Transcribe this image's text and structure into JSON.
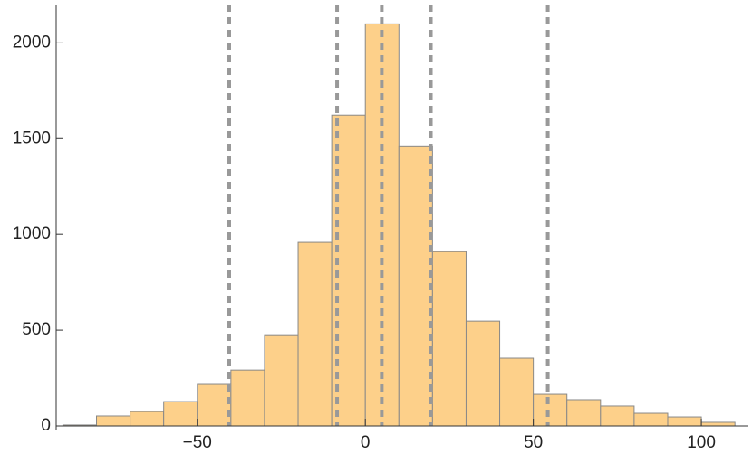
{
  "chart_data": {
    "type": "histogram",
    "bins": [
      -90,
      -80,
      -70,
      -60,
      -50,
      -40,
      -30,
      -20,
      -10,
      0,
      10,
      20,
      30,
      40,
      50,
      60,
      70,
      80,
      90,
      100,
      110
    ],
    "counts": [
      5,
      52,
      75,
      127,
      217,
      292,
      476,
      958,
      1623,
      2099,
      1462,
      910,
      547,
      354,
      165,
      137,
      104,
      66,
      47,
      19
    ],
    "color": "#fdd08a",
    "edge_color": "#888888",
    "vlines": [
      -40.5,
      -8.4,
      4.9,
      19.5,
      54.3
    ],
    "vline_color": "#999999",
    "xlim": [
      -92,
      114
    ],
    "ylim": [
      0,
      2200
    ],
    "xticks": [
      {
        "value": -50,
        "label": "−50"
      },
      0,
      50,
      100
    ],
    "yticks": [
      0,
      500,
      1000,
      1500,
      2000
    ]
  }
}
